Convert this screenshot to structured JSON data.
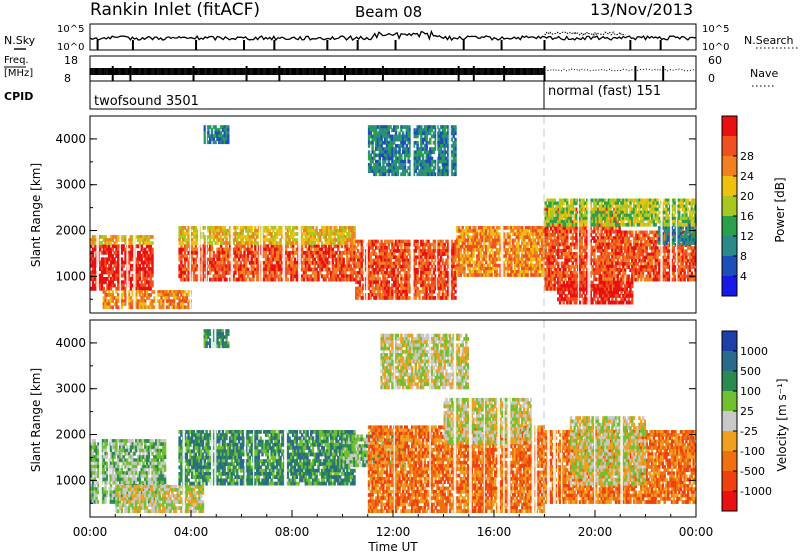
{
  "header": {
    "station": "Rankin Inlet (fitACF)",
    "beam": "Beam 08",
    "date": "13/Nov/2013"
  },
  "top_panels": {
    "nsky_label": "N.Sky",
    "nsky_ticks": [
      "10^5",
      "10^0"
    ],
    "nsearch_label": "N.Search",
    "nsearch_ticks": [
      "10^5",
      "10^0"
    ],
    "freq_label": [
      "Freq.",
      "[MHz]"
    ],
    "freq_ticks": [
      "18",
      "8"
    ],
    "nave_label": "Nave",
    "nave_ticks": [
      "60",
      "0"
    ],
    "cpid_label": "CPID",
    "cpid_segments": [
      {
        "text": "twofsound 3501",
        "start_h": 0,
        "end_h": 18
      },
      {
        "text": "normal (fast) 151",
        "start_h": 18,
        "end_h": 24
      }
    ]
  },
  "chart_data": [
    {
      "type": "heatmap",
      "panel": "power",
      "xlabel": "",
      "ylabel": "Slant Range [km]",
      "y_ticks": [
        "1000",
        "2000",
        "3000",
        "4000"
      ],
      "xlim_hours": [
        0,
        24
      ],
      "ylim_km": [
        200,
        4500
      ],
      "colorbar": {
        "label": "Power [dB]",
        "ticks": [
          "4",
          "8",
          "12",
          "16",
          "20",
          "24",
          "28"
        ],
        "colors": [
          "#1818e8",
          "#1d4fb8",
          "#2a8a8a",
          "#2aa04a",
          "#a8c820",
          "#f0c010",
          "#f08020",
          "#f05020",
          "#e81010"
        ]
      },
      "regions": [
        {
          "start_h": 0.0,
          "end_h": 2.5,
          "min_km": 700,
          "max_km": 1700,
          "level": 8
        },
        {
          "start_h": 0.0,
          "end_h": 2.5,
          "min_km": 1700,
          "max_km": 1900,
          "level": 5
        },
        {
          "start_h": 0.5,
          "end_h": 4.0,
          "min_km": 300,
          "max_km": 700,
          "level": 6
        },
        {
          "start_h": 3.5,
          "end_h": 10.5,
          "min_km": 900,
          "max_km": 1700,
          "level": 7
        },
        {
          "start_h": 3.5,
          "end_h": 10.5,
          "min_km": 1700,
          "max_km": 2100,
          "level": 5
        },
        {
          "start_h": 10.5,
          "end_h": 14.5,
          "min_km": 500,
          "max_km": 1800,
          "level": 7
        },
        {
          "start_h": 14.5,
          "end_h": 18.0,
          "min_km": 1000,
          "max_km": 2100,
          "level": 6
        },
        {
          "start_h": 18.0,
          "end_h": 21.0,
          "min_km": 700,
          "max_km": 2500,
          "level": 7
        },
        {
          "start_h": 18.5,
          "end_h": 21.5,
          "min_km": 400,
          "max_km": 900,
          "level": 8
        },
        {
          "start_h": 21.0,
          "end_h": 24.0,
          "min_km": 900,
          "max_km": 2000,
          "level": 7
        },
        {
          "start_h": 22.5,
          "end_h": 24.0,
          "min_km": 1700,
          "max_km": 2300,
          "level": 2
        },
        {
          "start_h": 18.0,
          "end_h": 24.0,
          "min_km": 2100,
          "max_km": 2700,
          "level": 4
        },
        {
          "start_h": 4.5,
          "end_h": 5.5,
          "min_km": 3900,
          "max_km": 4300,
          "level": 2
        },
        {
          "start_h": 11.0,
          "end_h": 14.5,
          "min_km": 3200,
          "max_km": 4300,
          "level": 2
        }
      ]
    },
    {
      "type": "heatmap",
      "panel": "velocity",
      "xlabel": "Time UT",
      "ylabel": "Slant Range [km]",
      "x_ticks": [
        "00:00",
        "04:00",
        "08:00",
        "12:00",
        "16:00",
        "20:00",
        "00:00"
      ],
      "y_ticks": [
        "1000",
        "2000",
        "3000",
        "4000"
      ],
      "xlim_hours": [
        0,
        24
      ],
      "ylim_km": [
        200,
        4500
      ],
      "colorbar": {
        "label": "Velocity [m s⁻¹]",
        "ticks": [
          "1000",
          "500",
          "100",
          "25",
          "-25",
          "-100",
          "-500",
          "-1000"
        ],
        "colors": [
          "#1d3fa8",
          "#2a6a8a",
          "#2a8a50",
          "#70c030",
          "#c8c8c8",
          "#f0a020",
          "#f07010",
          "#f04010",
          "#e81010"
        ]
      },
      "regions": [
        {
          "start_h": 0.0,
          "end_h": 3.0,
          "min_km": 500,
          "max_km": 1900,
          "level": 3
        },
        {
          "start_h": 1.0,
          "end_h": 4.5,
          "min_km": 300,
          "max_km": 900,
          "level": 4
        },
        {
          "start_h": 3.5,
          "end_h": 10.5,
          "min_km": 900,
          "max_km": 2100,
          "level": 2
        },
        {
          "start_h": 10.0,
          "end_h": 12.5,
          "min_km": 1300,
          "max_km": 2000,
          "level": 3
        },
        {
          "start_h": 11.0,
          "end_h": 18.0,
          "min_km": 300,
          "max_km": 2200,
          "level": 6
        },
        {
          "start_h": 14.0,
          "end_h": 17.5,
          "min_km": 1800,
          "max_km": 2800,
          "level": 4
        },
        {
          "start_h": 18.0,
          "end_h": 24.0,
          "min_km": 500,
          "max_km": 2100,
          "level": 6
        },
        {
          "start_h": 19.0,
          "end_h": 22.0,
          "min_km": 900,
          "max_km": 2400,
          "level": 4
        },
        {
          "start_h": 4.5,
          "end_h": 5.5,
          "min_km": 3900,
          "max_km": 4300,
          "level": 2
        },
        {
          "start_h": 11.5,
          "end_h": 15.0,
          "min_km": 3000,
          "max_km": 4200,
          "level": 4
        }
      ]
    }
  ]
}
